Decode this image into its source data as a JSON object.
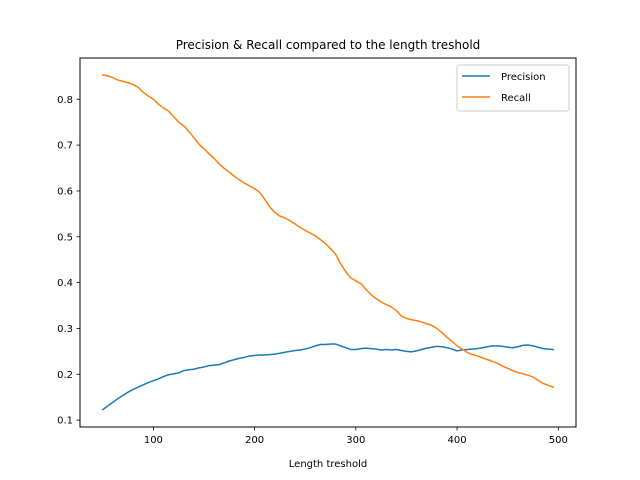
{
  "chart_data": {
    "type": "line",
    "title": "Precision & Recall compared to the length treshold",
    "xlabel": "Length treshold",
    "ylabel": "",
    "xlim": [
      27.5,
      517.5
    ],
    "ylim": [
      0.085,
      0.89
    ],
    "xticks": [
      100,
      200,
      300,
      400,
      500
    ],
    "yticks": [
      0.1,
      0.2,
      0.3,
      0.4,
      0.5,
      0.6,
      0.7,
      0.8
    ],
    "grid": false,
    "legend_position": "top-right",
    "x": [
      50,
      55,
      60,
      65,
      70,
      75,
      80,
      85,
      90,
      95,
      100,
      105,
      110,
      115,
      120,
      125,
      130,
      135,
      140,
      145,
      150,
      155,
      160,
      165,
      170,
      175,
      180,
      185,
      190,
      195,
      200,
      205,
      210,
      215,
      220,
      225,
      230,
      235,
      240,
      245,
      250,
      255,
      260,
      265,
      270,
      275,
      280,
      285,
      290,
      295,
      300,
      305,
      310,
      315,
      320,
      325,
      330,
      335,
      340,
      345,
      350,
      355,
      360,
      365,
      370,
      375,
      380,
      385,
      390,
      395,
      400,
      405,
      410,
      415,
      420,
      425,
      430,
      435,
      440,
      445,
      450,
      455,
      460,
      465,
      470,
      475,
      480,
      485,
      490,
      495
    ],
    "series": [
      {
        "name": "Precision",
        "color": "#1f77b4",
        "values": [
          0.123,
          0.131,
          0.139,
          0.147,
          0.154,
          0.161,
          0.167,
          0.172,
          0.177,
          0.182,
          0.186,
          0.19,
          0.195,
          0.199,
          0.201,
          0.203,
          0.208,
          0.21,
          0.211,
          0.214,
          0.216,
          0.219,
          0.22,
          0.221,
          0.225,
          0.229,
          0.232,
          0.235,
          0.237,
          0.24,
          0.241,
          0.242,
          0.242,
          0.243,
          0.244,
          0.246,
          0.248,
          0.25,
          0.252,
          0.253,
          0.255,
          0.258,
          0.262,
          0.265,
          0.265,
          0.266,
          0.266,
          0.262,
          0.258,
          0.254,
          0.254,
          0.256,
          0.257,
          0.256,
          0.255,
          0.253,
          0.254,
          0.253,
          0.254,
          0.252,
          0.25,
          0.249,
          0.251,
          0.254,
          0.257,
          0.259,
          0.261,
          0.26,
          0.258,
          0.255,
          0.251,
          0.253,
          0.254,
          0.255,
          0.256,
          0.258,
          0.26,
          0.262,
          0.262,
          0.261,
          0.259,
          0.258,
          0.26,
          0.263,
          0.264,
          0.262,
          0.259,
          0.256,
          0.255,
          0.254
        ]
      },
      {
        "name": "Recall",
        "color": "#ff7f0e",
        "values": [
          0.853,
          0.851,
          0.847,
          0.842,
          0.839,
          0.836,
          0.832,
          0.826,
          0.815,
          0.807,
          0.8,
          0.789,
          0.781,
          0.774,
          0.762,
          0.75,
          0.742,
          0.73,
          0.716,
          0.702,
          0.692,
          0.681,
          0.671,
          0.659,
          0.649,
          0.641,
          0.632,
          0.624,
          0.617,
          0.611,
          0.605,
          0.597,
          0.582,
          0.565,
          0.553,
          0.545,
          0.541,
          0.535,
          0.528,
          0.52,
          0.514,
          0.508,
          0.502,
          0.494,
          0.485,
          0.474,
          0.462,
          0.441,
          0.424,
          0.41,
          0.404,
          0.398,
          0.385,
          0.374,
          0.365,
          0.358,
          0.352,
          0.347,
          0.339,
          0.327,
          0.322,
          0.319,
          0.317,
          0.314,
          0.31,
          0.307,
          0.3,
          0.291,
          0.281,
          0.272,
          0.262,
          0.255,
          0.248,
          0.243,
          0.24,
          0.236,
          0.232,
          0.228,
          0.224,
          0.218,
          0.213,
          0.208,
          0.204,
          0.201,
          0.198,
          0.194,
          0.187,
          0.18,
          0.176,
          0.172
        ]
      }
    ]
  }
}
